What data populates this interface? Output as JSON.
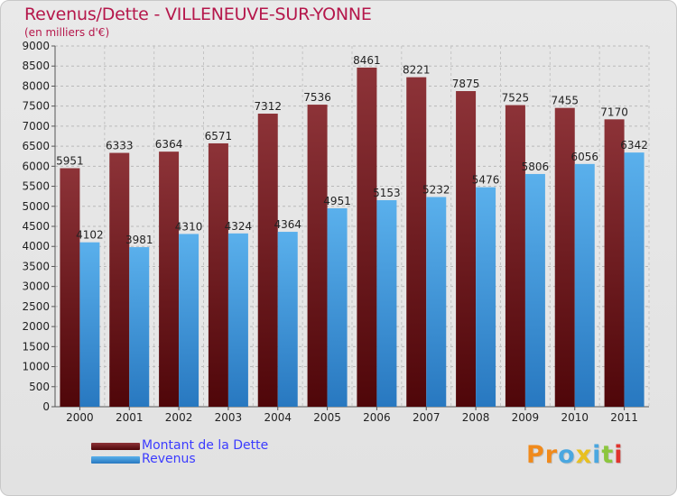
{
  "header": {
    "title": "Revenus/Dette - VILLENEUVE-SUR-YONNE",
    "subtitle": "(en milliers d'€)"
  },
  "colors": {
    "title": "#b5174b",
    "dette_dark": "#5a0a0e",
    "dette_light": "#8b3338",
    "revenus_dark": "#2a7ac4",
    "revenus_light": "#5aaeea",
    "legend_text": "#3b3bff"
  },
  "legend": {
    "items": [
      {
        "label": "Montant de la Dette",
        "color": "#6e1418"
      },
      {
        "label": "Revenus",
        "color": "#4ea3e2"
      }
    ]
  },
  "logo": {
    "text": "Proxiti",
    "letter_colors": [
      "#f08a1c",
      "#f08a1c",
      "#4aa7e0",
      "#e8c020",
      "#4aa7e0",
      "#8cc63e",
      "#e0342e"
    ]
  },
  "chart_data": {
    "type": "bar",
    "categories": [
      "2000",
      "2001",
      "2002",
      "2003",
      "2004",
      "2005",
      "2006",
      "2007",
      "2008",
      "2009",
      "2010",
      "2011"
    ],
    "series": [
      {
        "name": "Montant de la Dette",
        "values": [
          5951,
          6333,
          6364,
          6571,
          7312,
          7536,
          8461,
          8221,
          7875,
          7525,
          7455,
          7170
        ]
      },
      {
        "name": "Revenus",
        "values": [
          4102,
          3981,
          4310,
          4324,
          4364,
          4951,
          5153,
          5232,
          5476,
          5806,
          6056,
          6342
        ]
      }
    ],
    "title": "Revenus/Dette - VILLENEUVE-SUR-YONNE",
    "ylabel": "(en milliers d'€)",
    "ylim": [
      0,
      9000
    ],
    "yticks": [
      0,
      500,
      1000,
      1500,
      2000,
      2500,
      3000,
      3500,
      4000,
      4500,
      5000,
      5500,
      6000,
      6500,
      7000,
      7500,
      8000,
      8500,
      9000
    ],
    "grid": true,
    "legend_position": "bottom-left"
  }
}
